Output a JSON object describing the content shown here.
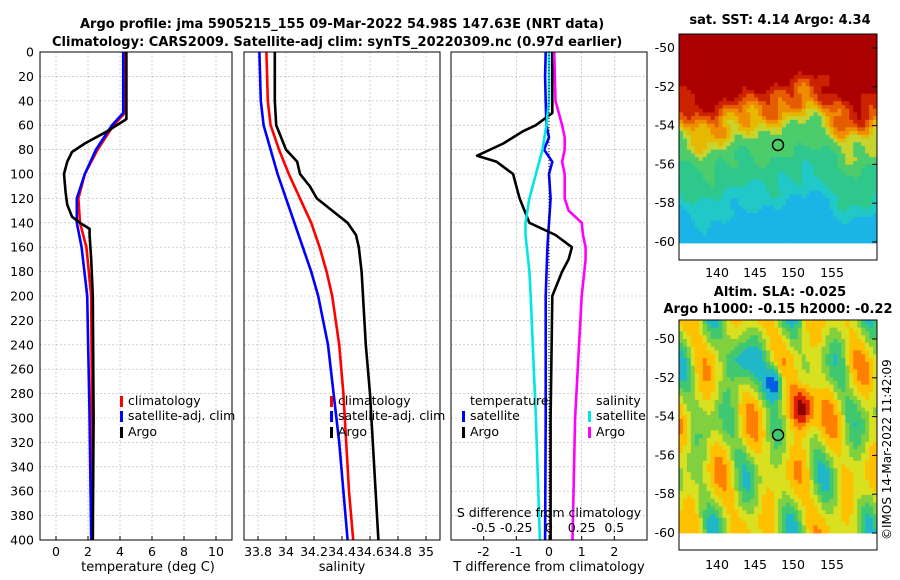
{
  "header": {
    "line1": "Argo profile: jma 5905215_155 09-Mar-2022 54.98S 147.63E (NRT data)",
    "line2": "Climatology: CARS2009. Satellite-adj clim: synTS_20220309.nc (0.97d earlier)"
  },
  "colors": {
    "climatology": "#ff0000",
    "satellite": "#0000ff",
    "argo": "#000000",
    "salinity_argo": "#ff00ff",
    "salinity_satellite": "#00e5e5",
    "grid": "#b4b4b4"
  },
  "chart_data": [
    {
      "type": "line",
      "id": "temperature",
      "xlabel": "temperature (deg C)",
      "ylabel": "",
      "xlim": [
        -1,
        11
      ],
      "ylim": [
        400,
        0
      ],
      "xticks": [
        "0",
        "2",
        "4",
        "6",
        "8",
        "10"
      ],
      "yticks": [
        "0",
        "20",
        "40",
        "60",
        "80",
        "100",
        "120",
        "140",
        "160",
        "180",
        "200",
        "220",
        "240",
        "260",
        "280",
        "300",
        "320",
        "340",
        "360",
        "380",
        "400"
      ],
      "legend": [
        "climatology",
        "satellite-adj. clim",
        "Argo"
      ],
      "series": [
        {
          "name": "climatology",
          "color": "#ff0000",
          "depth": [
            0,
            50,
            60,
            80,
            100,
            120,
            140,
            160,
            200,
            300,
            400
          ],
          "values": [
            4.3,
            4.3,
            3.6,
            2.6,
            1.8,
            1.4,
            1.5,
            1.9,
            2.2,
            2.25,
            2.3
          ]
        },
        {
          "name": "satellite-adj. clim",
          "color": "#0000ff",
          "depth": [
            0,
            50,
            60,
            80,
            100,
            120,
            140,
            160,
            200,
            300,
            400
          ],
          "values": [
            4.2,
            4.2,
            3.5,
            2.5,
            1.8,
            1.3,
            1.3,
            1.6,
            1.95,
            2.1,
            2.2
          ]
        },
        {
          "name": "Argo",
          "color": "#000000",
          "depth": [
            0,
            55,
            65,
            75,
            82,
            90,
            100,
            115,
            125,
            135,
            140,
            145,
            150,
            170,
            200,
            300,
            400
          ],
          "values": [
            4.4,
            4.4,
            3.2,
            1.8,
            1.0,
            0.7,
            0.5,
            0.6,
            0.7,
            1.0,
            1.5,
            2.1,
            2.1,
            2.2,
            2.3,
            2.35,
            2.3
          ]
        }
      ]
    },
    {
      "type": "line",
      "id": "salinity",
      "xlabel": "salinity",
      "xlim": [
        33.7,
        35.1
      ],
      "ylim": [
        400,
        0
      ],
      "xticks": [
        "33.8",
        "34",
        "34.2",
        "34.4",
        "34.6",
        "34.8",
        "35"
      ],
      "legend": [
        "climatology",
        "satellite-adj. clim",
        "Argo"
      ],
      "series": [
        {
          "name": "climatology",
          "color": "#ff0000",
          "depth": [
            0,
            40,
            60,
            80,
            100,
            120,
            140,
            160,
            180,
            200,
            240,
            280,
            320,
            360,
            400
          ],
          "values": [
            33.86,
            33.87,
            33.89,
            33.95,
            34.02,
            34.1,
            34.18,
            34.24,
            34.29,
            34.33,
            34.38,
            34.41,
            34.43,
            34.45,
            34.48
          ]
        },
        {
          "name": "satellite-adj. clim",
          "color": "#0000ff",
          "depth": [
            0,
            40,
            60,
            80,
            100,
            120,
            140,
            160,
            180,
            200,
            240,
            280,
            320,
            360,
            400
          ],
          "values": [
            33.81,
            33.82,
            33.84,
            33.89,
            33.94,
            34.0,
            34.06,
            34.12,
            34.18,
            34.23,
            34.3,
            34.34,
            34.38,
            34.41,
            34.44
          ]
        },
        {
          "name": "Argo",
          "color": "#000000",
          "depth": [
            0,
            40,
            60,
            80,
            90,
            100,
            110,
            120,
            130,
            140,
            150,
            160,
            180,
            200,
            240,
            280,
            320,
            360,
            400
          ],
          "values": [
            33.92,
            33.92,
            33.93,
            34.0,
            34.08,
            34.1,
            34.17,
            34.22,
            34.33,
            34.44,
            34.5,
            34.52,
            34.54,
            34.55,
            34.57,
            34.6,
            34.62,
            34.64,
            34.66
          ]
        }
      ]
    },
    {
      "type": "line",
      "id": "difference",
      "xlabel": "T difference from climatology",
      "x2label": "S difference from climatology",
      "xlim": [
        -3,
        3
      ],
      "ylim": [
        400,
        0
      ],
      "xticks": [
        "-2",
        "-1",
        "0",
        "1",
        "2"
      ],
      "x2ticks": [
        "-0.5",
        "-0.25",
        "0",
        "0.25",
        "0.5"
      ],
      "legend_t": [
        "temperature",
        "satellite",
        "Argo"
      ],
      "legend_s": [
        "salinity",
        "satellite",
        "Argo"
      ],
      "series": [
        {
          "name": "T satellite",
          "color": "#0000ff",
          "depth": [
            0,
            20,
            40,
            60,
            70,
            80,
            90,
            100,
            120,
            140,
            160,
            200,
            300,
            400
          ],
          "values": [
            -0.1,
            -0.12,
            -0.1,
            -0.08,
            0.0,
            -0.15,
            0.1,
            0.0,
            0.05,
            0.0,
            -0.05,
            -0.1,
            -0.1,
            -0.12
          ]
        },
        {
          "name": "T Argo",
          "color": "#000000",
          "depth": [
            0,
            50,
            60,
            65,
            75,
            85,
            90,
            100,
            110,
            120,
            140,
            150,
            160,
            170,
            180,
            200,
            300,
            400
          ],
          "values": [
            0.1,
            0.1,
            -0.4,
            -0.8,
            -1.4,
            -2.2,
            -1.6,
            -1.1,
            -1.0,
            -0.9,
            -0.6,
            0.2,
            0.7,
            0.6,
            0.4,
            0.1,
            0.05,
            0.05
          ]
        },
        {
          "name": "S satellite",
          "color": "#00e5e5",
          "depth": [
            0,
            40,
            60,
            80,
            100,
            120,
            140,
            150,
            160,
            180,
            200,
            300,
            400
          ],
          "values": [
            0.0,
            0.0,
            -0.02,
            -0.05,
            -0.1,
            -0.15,
            -0.18,
            -0.18,
            -0.17,
            -0.15,
            -0.14,
            -0.1,
            -0.07
          ]
        },
        {
          "name": "S Argo",
          "color": "#ff00ff",
          "depth": [
            0,
            40,
            60,
            70,
            80,
            90,
            100,
            110,
            120,
            130,
            140,
            150,
            160,
            170,
            180,
            200,
            300,
            400
          ],
          "values": [
            0.04,
            0.05,
            0.1,
            0.12,
            0.12,
            0.1,
            0.12,
            0.12,
            0.12,
            0.15,
            0.25,
            0.26,
            0.28,
            0.28,
            0.27,
            0.25,
            0.2,
            0.18
          ]
        }
      ]
    }
  ],
  "maps": {
    "sst": {
      "title": "sat. SST: 4.14 Argo: 4.34",
      "yticks": [
        "-50",
        "-52",
        "-54",
        "-56",
        "-58",
        "-60"
      ],
      "xticks": [
        "140",
        "145",
        "150",
        "155"
      ],
      "float_lon": 147.63,
      "float_lat": -54.98
    },
    "sla": {
      "title1": "Altim. SLA: -0.025",
      "title2": "Argo h1000: -0.15 h2000: -0.22",
      "yticks": [
        "-50",
        "-52",
        "-54",
        "-56",
        "-58",
        "-60"
      ],
      "xticks": [
        "140",
        "145",
        "150",
        "155"
      ],
      "float_lon": 147.63,
      "float_lat": -54.98
    }
  },
  "footer": {
    "stamp": "©IMOS 14-Mar-2022 11:42:09"
  }
}
